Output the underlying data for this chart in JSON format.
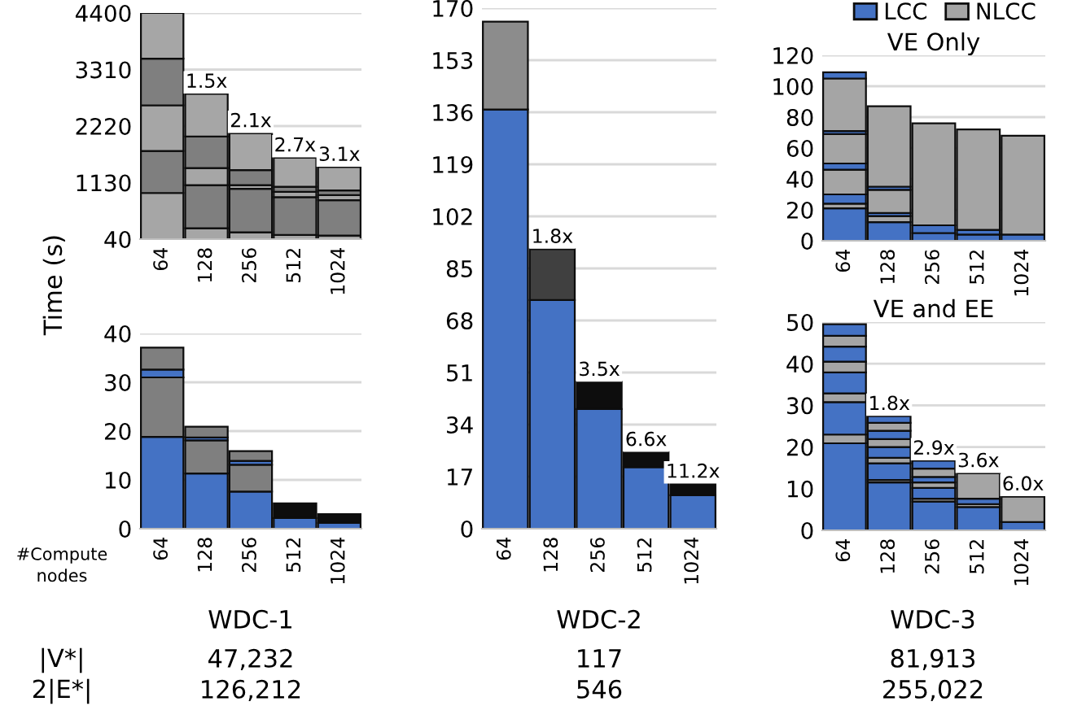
{
  "chart_data": [
    {
      "type": "bar",
      "stacked": true,
      "categories": [
        "64",
        "128",
        "256",
        "512",
        "1024"
      ],
      "ylim": [
        40,
        4400
      ],
      "yticks": [
        40,
        1130,
        2220,
        3310,
        4400
      ],
      "grid": "y",
      "series": [
        {
          "color": "#a6a6a6",
          "values": [
            930,
            250,
            170,
            120,
            110
          ]
        },
        {
          "color": "#7f7f7f",
          "values": [
            810,
            830,
            840,
            730,
            680
          ]
        },
        {
          "color": "#a6a6a6",
          "values": [
            880,
            330,
            70,
            100,
            100
          ]
        },
        {
          "color": "#7f7f7f",
          "values": [
            900,
            610,
            290,
            100,
            90
          ]
        },
        {
          "color": "#a6a6a6",
          "values": [
            880,
            820,
            710,
            560,
            450
          ]
        }
      ],
      "annotations": [
        {
          "text": "1.5x",
          "x": "128",
          "y": 2840
        },
        {
          "text": "2.1x",
          "x": "256",
          "y": 2080
        },
        {
          "text": "2.7x",
          "x": "512",
          "y": 1610
        },
        {
          "text": "3.1x",
          "x": "1024",
          "y": 1430
        }
      ]
    },
    {
      "type": "bar",
      "stacked": true,
      "categories": [
        "64",
        "128",
        "256",
        "512",
        "1024"
      ],
      "ylim": [
        0,
        40
      ],
      "yticks": [
        0,
        10,
        20,
        30,
        40
      ],
      "grid": "y",
      "ylabel": "Time (s)",
      "xlabel": "#Compute\nnodes",
      "series": [
        {
          "color": "#4472c4",
          "values": [
            18.8,
            11.3,
            7.6,
            2.2,
            1.2
          ]
        },
        {
          "colors": [
            "#7f7f7f",
            "#7f7f7f",
            "#7f7f7f",
            "#0d0d0d",
            "#0d0d0d"
          ],
          "values": [
            12.2,
            6.8,
            5.5,
            3.0,
            1.8
          ]
        },
        {
          "color": "#4472c4",
          "values": [
            1.6,
            0.6,
            0.8,
            null,
            null
          ]
        },
        {
          "color": "#7f7f7f",
          "values": [
            4.5,
            2.2,
            2.0,
            null,
            null
          ]
        }
      ],
      "annotations": [
        "|V*|",
        "2|E*|",
        "WDC-1",
        "47,232",
        "126,212"
      ]
    },
    {
      "type": "bar",
      "stacked": true,
      "categories": [
        "64",
        "128",
        "256",
        "512",
        "1024"
      ],
      "ylim": [
        0,
        170
      ],
      "yticks": [
        0,
        17,
        34,
        51,
        68,
        85,
        102,
        119,
        136,
        153,
        170
      ],
      "grid": "y",
      "series": [
        {
          "color": "#4472c4",
          "values": [
            136.9,
            74.7,
            39.1,
            20.1,
            10.9
          ]
        },
        {
          "colors": [
            "#8c8c8c",
            "#404040",
            "#0d0d0d",
            "#0d0d0d",
            "#0d0d0d"
          ],
          "values": [
            28.7,
            16.6,
            8.8,
            4.9,
            3.7
          ]
        }
      ],
      "annotations": [
        {
          "text": "1.8x",
          "x": "128",
          "y": 91.3
        },
        {
          "text": "3.5x",
          "x": "256",
          "y": 47.9
        },
        {
          "text": "6.6x",
          "x": "512",
          "y": 25.0
        },
        {
          "text": "11.2x",
          "x": "1024",
          "y": 14.6
        },
        "WDC-2",
        "117",
        "546"
      ]
    },
    {
      "type": "bar",
      "stacked": true,
      "title": "VE Only",
      "categories": [
        "64",
        "128",
        "256",
        "512",
        "1024"
      ],
      "ylim": [
        0,
        120
      ],
      "yticks": [
        0,
        20,
        40,
        60,
        80,
        100,
        120
      ],
      "grid": "y",
      "legend": "top right",
      "series": [
        {
          "name": "LCC",
          "color": "#4472c4",
          "values": [
            21,
            12,
            5,
            4,
            null
          ]
        },
        {
          "name": "NLCC",
          "color": "#a5a5a5",
          "values": [
            3,
            4,
            null,
            null,
            null
          ]
        },
        {
          "color": "#4472c4",
          "values": [
            6,
            2,
            5,
            3,
            4
          ]
        },
        {
          "color": "#a5a5a5",
          "values": [
            16,
            15,
            66,
            65,
            64
          ]
        },
        {
          "color": "#4472c4",
          "values": [
            4,
            2,
            null,
            null,
            null
          ]
        },
        {
          "color": "#a5a5a5",
          "values": [
            19,
            52,
            null,
            null,
            null
          ]
        },
        {
          "color": "#4472c4",
          "values": [
            2,
            null,
            null,
            null,
            null
          ]
        },
        {
          "color": "#a5a5a5",
          "values": [
            34,
            null,
            null,
            null,
            null
          ]
        },
        {
          "color": "#4472c4",
          "values": [
            4,
            null,
            null,
            null,
            null
          ]
        }
      ]
    },
    {
      "type": "bar",
      "stacked": true,
      "title": "VE and EE",
      "categories": [
        "64",
        "128",
        "256",
        "512",
        "1024"
      ],
      "ylim": [
        0,
        50
      ],
      "yticks": [
        0,
        10,
        20,
        30,
        40,
        50
      ],
      "grid": "y",
      "series": [
        {
          "color": "#4472c4",
          "values": [
            20.9,
            11.5,
            6.9,
            5.6,
            2.0
          ]
        },
        {
          "color": "#a5a5a5",
          "values": [
            2.1,
            0.6,
            0.7,
            0.7,
            6.1
          ]
        },
        {
          "color": "#4472c4",
          "values": [
            7.8,
            4.0,
            2.6,
            1.3,
            null
          ]
        },
        {
          "color": "#a5a5a5",
          "values": [
            2.1,
            1.3,
            1.3,
            6.1,
            null
          ]
        },
        {
          "color": "#4472c4",
          "values": [
            5.0,
            2.6,
            1.3,
            null,
            null
          ]
        },
        {
          "color": "#a5a5a5",
          "values": [
            2.6,
            1.9,
            2.0,
            null,
            null
          ]
        },
        {
          "color": "#4472c4",
          "values": [
            3.6,
            2.0,
            1.9,
            null,
            null
          ]
        },
        {
          "color": "#a5a5a5",
          "values": [
            2.6,
            1.9,
            null,
            null,
            null
          ]
        },
        {
          "color": "#4472c4",
          "values": [
            2.8,
            1.6,
            null,
            null,
            null
          ]
        }
      ],
      "annotations": [
        {
          "text": "1.8x",
          "x": "128",
          "y": 27.4
        },
        {
          "text": "2.9x",
          "x": "256",
          "y": 16.7
        },
        {
          "text": "3.6x",
          "x": "512",
          "y": 13.7
        },
        {
          "text": "6.0x",
          "x": "1024",
          "y": 8.1
        },
        "WDC-3",
        "81,913",
        "255,022"
      ]
    }
  ]
}
